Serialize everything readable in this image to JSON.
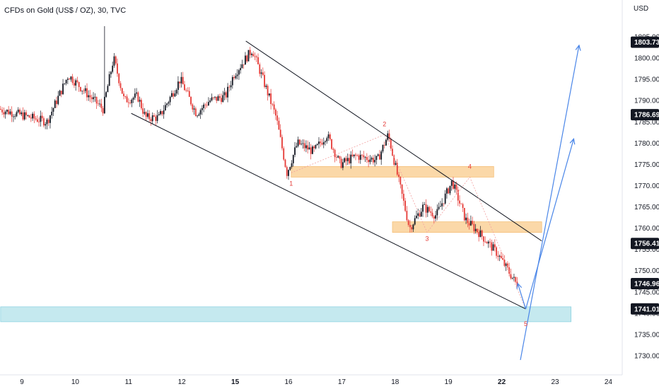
{
  "chart_data": {
    "type": "candlestick",
    "title": "CFDs on Gold (US$ / OZ), 30, TVC",
    "currency": "USD",
    "ylim": [
      1727,
      1808
    ],
    "y_ticks": [
      "1730.00",
      "1735.00",
      "1740.00",
      "1745.00",
      "1750.00",
      "1755.00",
      "1760.00",
      "1765.00",
      "1770.00",
      "1775.00",
      "1780.00",
      "1785.00",
      "1790.00",
      "1795.00",
      "1800.00",
      "1805.00"
    ],
    "x_ticks": [
      {
        "label": "9",
        "day": 9
      },
      {
        "label": "10",
        "day": 10
      },
      {
        "label": "11",
        "day": 11
      },
      {
        "label": "12",
        "day": 12
      },
      {
        "label": "15",
        "day": 13
      },
      {
        "label": "16",
        "day": 14
      },
      {
        "label": "17",
        "day": 15
      },
      {
        "label": "18",
        "day": 16
      },
      {
        "label": "19",
        "day": 17
      },
      {
        "label": "22",
        "day": 18
      },
      {
        "label": "23",
        "day": 19
      },
      {
        "label": "24",
        "day": 20
      }
    ],
    "x_range": [
      8.6,
      20.6
    ],
    "price_tags": [
      {
        "value": "1803.73",
        "price": 1803.73
      },
      {
        "value": "1786.69",
        "price": 1786.69
      },
      {
        "value": "1756.41",
        "price": 1756.41
      },
      {
        "value": "1746.96",
        "price": 1746.96
      },
      {
        "value": "1741.01",
        "price": 1741.01
      }
    ],
    "path_anchors": [
      [
        8.6,
        1788
      ],
      [
        9.2,
        1786
      ],
      [
        9.5,
        1785
      ],
      [
        9.9,
        1796
      ],
      [
        10.3,
        1791
      ],
      [
        10.55,
        1788
      ],
      [
        10.75,
        1800
      ],
      [
        10.95,
        1790
      ],
      [
        11.2,
        1791
      ],
      [
        11.35,
        1786
      ],
      [
        11.6,
        1786
      ],
      [
        12.0,
        1795
      ],
      [
        12.3,
        1787
      ],
      [
        12.55,
        1790
      ],
      [
        12.85,
        1791
      ],
      [
        13.0,
        1796
      ],
      [
        13.35,
        1802
      ],
      [
        13.55,
        1795
      ],
      [
        13.8,
        1786
      ],
      [
        14.0,
        1773
      ],
      [
        14.2,
        1780
      ],
      [
        14.5,
        1778
      ],
      [
        14.75,
        1782
      ],
      [
        15.0,
        1775
      ],
      [
        15.3,
        1777
      ],
      [
        15.7,
        1776
      ],
      [
        15.9,
        1782
      ],
      [
        16.1,
        1771
      ],
      [
        16.3,
        1760
      ],
      [
        16.55,
        1765
      ],
      [
        16.8,
        1763
      ],
      [
        17.1,
        1771
      ],
      [
        17.35,
        1762
      ],
      [
        17.6,
        1759
      ],
      [
        17.95,
        1754
      ],
      [
        18.3,
        1747
      ]
    ],
    "wave_points": [
      {
        "label": "1",
        "day": 14.05,
        "price": 1773,
        "label_price": 1770
      },
      {
        "label": "2",
        "day": 15.8,
        "price": 1782,
        "label_price": 1784
      },
      {
        "label": "3",
        "day": 16.6,
        "price": 1759,
        "label_price": 1757
      },
      {
        "label": "4",
        "day": 17.4,
        "price": 1772,
        "label_price": 1774
      },
      {
        "label": "5",
        "day": 18.45,
        "price": 1741,
        "label_price": 1737
      }
    ],
    "channel_lines": [
      {
        "from": [
          13.2,
          1804
        ],
        "to": [
          18.75,
          1757
        ]
      },
      {
        "from": [
          11.05,
          1787
        ],
        "to": [
          18.45,
          1741
        ]
      }
    ],
    "zones": [
      {
        "name": "resistance-zone-1",
        "from_day": 14.05,
        "to_day": 17.85,
        "low": 1772,
        "high": 1774.5,
        "color": "#fbd8a8"
      },
      {
        "name": "resistance-zone-2",
        "from_day": 15.95,
        "to_day": 18.75,
        "low": 1759,
        "high": 1761.5,
        "color": "#fbd8a8"
      },
      {
        "name": "support-zone",
        "from_day": 8.6,
        "to_day": 19.3,
        "low": 1738,
        "high": 1741.5,
        "color": "#c5e9ef"
      }
    ],
    "projection_arrows": [
      {
        "from": [
          18.45,
          1741
        ],
        "to": [
          19.35,
          1781
        ]
      },
      {
        "from": [
          18.35,
          1729
        ],
        "to": [
          19.45,
          1803
        ]
      },
      {
        "from": [
          18.45,
          1741
        ],
        "to": [
          18.3,
          1747
        ]
      }
    ],
    "colors": {
      "up": "#131722",
      "down": "#e53935",
      "channel": "#131722",
      "arrow": "#4a86e8",
      "tag_bg": "#131722"
    }
  }
}
